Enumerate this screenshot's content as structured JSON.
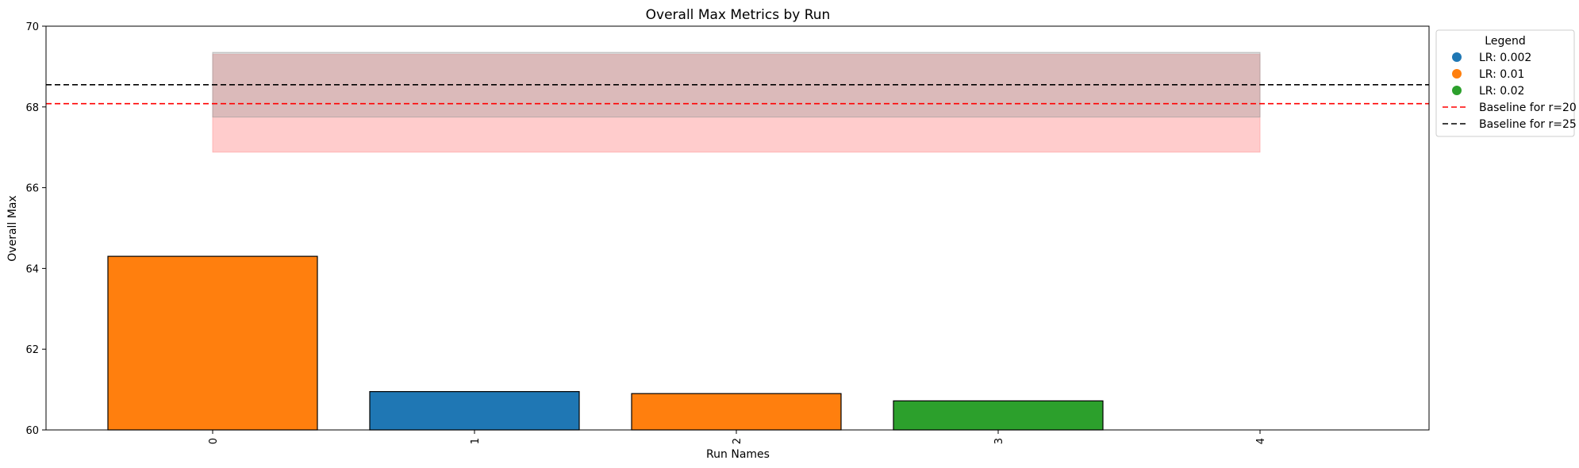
{
  "chart_data": {
    "type": "bar",
    "title": "Overall Max Metrics by Run",
    "xlabel": "Run Names",
    "ylabel": "Overall Max",
    "ylim": [
      60,
      70
    ],
    "yticks": [
      60,
      62,
      64,
      66,
      68,
      70
    ],
    "categories": [
      "0",
      "1",
      "2",
      "3",
      "4"
    ],
    "values": [
      64.3,
      60.95,
      60.9,
      60.72,
      null
    ],
    "bar_colors": [
      "#ff7f0e",
      "#1f77b4",
      "#ff7f0e",
      "#2ca02c",
      null
    ],
    "bands": [
      {
        "y0": 66.88,
        "y1": 69.3,
        "color": "#ff9999",
        "opacity": 0.5,
        "x_from": "0",
        "x_to": "4"
      },
      {
        "y0": 67.75,
        "y1": 69.35,
        "color": "#999999",
        "opacity": 0.35,
        "x_from": "0",
        "x_to": "4"
      }
    ],
    "baselines": [
      {
        "name": "Baseline for r=20",
        "y": 68.08,
        "color": "#ff0000"
      },
      {
        "name": "Baseline for r=25",
        "y": 68.55,
        "color": "#000000"
      }
    ],
    "legend": {
      "title": "Legend",
      "placement": "outside-top-right",
      "entries": [
        {
          "label": "LR: 0.002",
          "marker": "dot",
          "color": "#1f77b4"
        },
        {
          "label": "LR: 0.01",
          "marker": "dot",
          "color": "#ff7f0e"
        },
        {
          "label": "LR: 0.02",
          "marker": "dot",
          "color": "#2ca02c"
        },
        {
          "label": "Baseline for r=20",
          "marker": "dashed-line",
          "color": "#ff0000"
        },
        {
          "label": "Baseline for r=25",
          "marker": "dashed-line",
          "color": "#000000"
        }
      ]
    },
    "grid": false
  }
}
